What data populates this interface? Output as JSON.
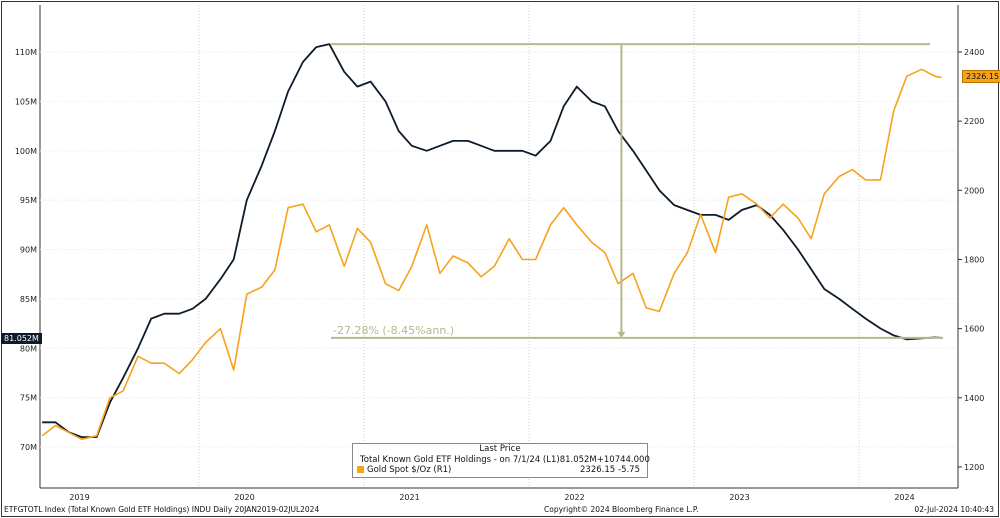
{
  "chart_data": {
    "type": "line",
    "title": "",
    "x_tick_labels": [
      "2019",
      "2020",
      "2021",
      "2022",
      "2023",
      "2024"
    ],
    "left_axis": {
      "ticks": [
        "70M",
        "75M",
        "80M",
        "85M",
        "90M",
        "95M",
        "100M",
        "105M",
        "110M"
      ],
      "range": [
        68,
        114
      ]
    },
    "right_axis": {
      "ticks": [
        "1200",
        "1400",
        "1600",
        "1800",
        "2000",
        "2200",
        "2400"
      ],
      "range": [
        1170,
        2560
      ]
    },
    "series": [
      {
        "name": "Total Known Gold ETF Holdings",
        "axis": "L1",
        "color": "#0d1b2a",
        "unit": "M oz",
        "x": [
          2019.05,
          2019.13,
          2019.21,
          2019.29,
          2019.38,
          2019.46,
          2019.54,
          2019.63,
          2019.71,
          2019.79,
          2019.88,
          2019.96,
          2020.04,
          2020.13,
          2020.21,
          2020.29,
          2020.38,
          2020.46,
          2020.54,
          2020.63,
          2020.71,
          2020.79,
          2020.88,
          2020.96,
          2021.04,
          2021.13,
          2021.21,
          2021.29,
          2021.38,
          2021.46,
          2021.54,
          2021.63,
          2021.71,
          2021.79,
          2021.88,
          2021.96,
          2022.04,
          2022.13,
          2022.21,
          2022.29,
          2022.38,
          2022.46,
          2022.54,
          2022.63,
          2022.71,
          2022.79,
          2022.88,
          2022.96,
          2023.04,
          2023.13,
          2023.21,
          2023.29,
          2023.38,
          2023.46,
          2023.54,
          2023.63,
          2023.71,
          2023.79,
          2023.88,
          2023.96,
          2024.04,
          2024.13,
          2024.21,
          2024.29,
          2024.38,
          2024.46,
          2024.5
        ],
        "values": [
          72.5,
          72.5,
          71.5,
          71,
          71,
          74.5,
          77,
          80,
          83,
          83.5,
          83.5,
          84,
          85,
          87,
          89,
          95,
          98.5,
          102,
          106,
          109,
          110.5,
          110.8,
          108,
          106.5,
          107,
          105,
          102,
          100.5,
          100,
          100.5,
          101,
          101,
          100.5,
          100,
          100,
          100,
          99.5,
          101,
          104.5,
          106.5,
          105,
          104.5,
          102,
          100,
          98,
          96,
          94.5,
          94,
          93.5,
          93.5,
          93,
          94,
          94.5,
          93.5,
          92,
          90,
          88,
          86,
          85,
          84,
          83,
          82,
          81.3,
          80.9,
          81,
          81.1,
          81.05
        ]
      },
      {
        "name": "Gold Spot $/Oz",
        "axis": "R1",
        "color": "#f7a21b",
        "unit": "USD",
        "x": [
          2019.05,
          2019.13,
          2019.21,
          2019.29,
          2019.38,
          2019.46,
          2019.54,
          2019.63,
          2019.71,
          2019.79,
          2019.88,
          2019.96,
          2020.04,
          2020.13,
          2020.21,
          2020.29,
          2020.38,
          2020.46,
          2020.54,
          2020.63,
          2020.71,
          2020.79,
          2020.88,
          2020.96,
          2021.04,
          2021.13,
          2021.21,
          2021.29,
          2021.38,
          2021.46,
          2021.54,
          2021.63,
          2021.71,
          2021.79,
          2021.88,
          2021.96,
          2022.04,
          2022.13,
          2022.21,
          2022.29,
          2022.38,
          2022.46,
          2022.54,
          2022.63,
          2022.71,
          2022.79,
          2022.88,
          2022.96,
          2023.04,
          2023.13,
          2023.21,
          2023.29,
          2023.38,
          2023.46,
          2023.54,
          2023.63,
          2023.71,
          2023.79,
          2023.88,
          2023.96,
          2024.04,
          2024.13,
          2024.21,
          2024.29,
          2024.38,
          2024.46,
          2024.5
        ],
        "values": [
          1290,
          1320,
          1300,
          1280,
          1290,
          1400,
          1420,
          1520,
          1500,
          1500,
          1470,
          1510,
          1560,
          1600,
          1480,
          1700,
          1720,
          1770,
          1950,
          1960,
          1880,
          1900,
          1780,
          1890,
          1850,
          1730,
          1710,
          1780,
          1900,
          1760,
          1810,
          1790,
          1750,
          1780,
          1860,
          1800,
          1800,
          1900,
          1950,
          1900,
          1850,
          1820,
          1730,
          1760,
          1660,
          1650,
          1760,
          1820,
          1930,
          1820,
          1980,
          1990,
          1960,
          1920,
          1960,
          1920,
          1860,
          1990,
          2040,
          2060,
          2030,
          2030,
          2230,
          2330,
          2350,
          2330,
          2326.15
        ]
      }
    ],
    "annotation": {
      "label": "-27.28% (-8.45%ann.)",
      "from_value": 110.8,
      "to_value": 81.05,
      "from_x": 2020.8,
      "to_x": 2022.56,
      "color": "#b8b78c"
    }
  },
  "legend": {
    "header": "Last Price",
    "rows": [
      {
        "name": "Total Known Gold ETF Holdings -  on 7/1/24  (L1)",
        "last": "81.052M",
        "change": "+10744.000",
        "color": "#0d1b2a"
      },
      {
        "name": "Gold Spot $/Oz  (R1)",
        "last": "2326.15",
        "change": "-5.75",
        "color": "#f7a21b"
      }
    ]
  },
  "tags": {
    "left": "81.052M",
    "right": "2326.15"
  },
  "footer": {
    "left": "ETFGTOTL Index (Total Known Gold ETF Holdings) INDU  Daily 20JAN2019-02JUL2024",
    "center": "Copyright© 2024 Bloomberg Finance L.P.",
    "right": "02-Jul-2024 10:40:43"
  }
}
